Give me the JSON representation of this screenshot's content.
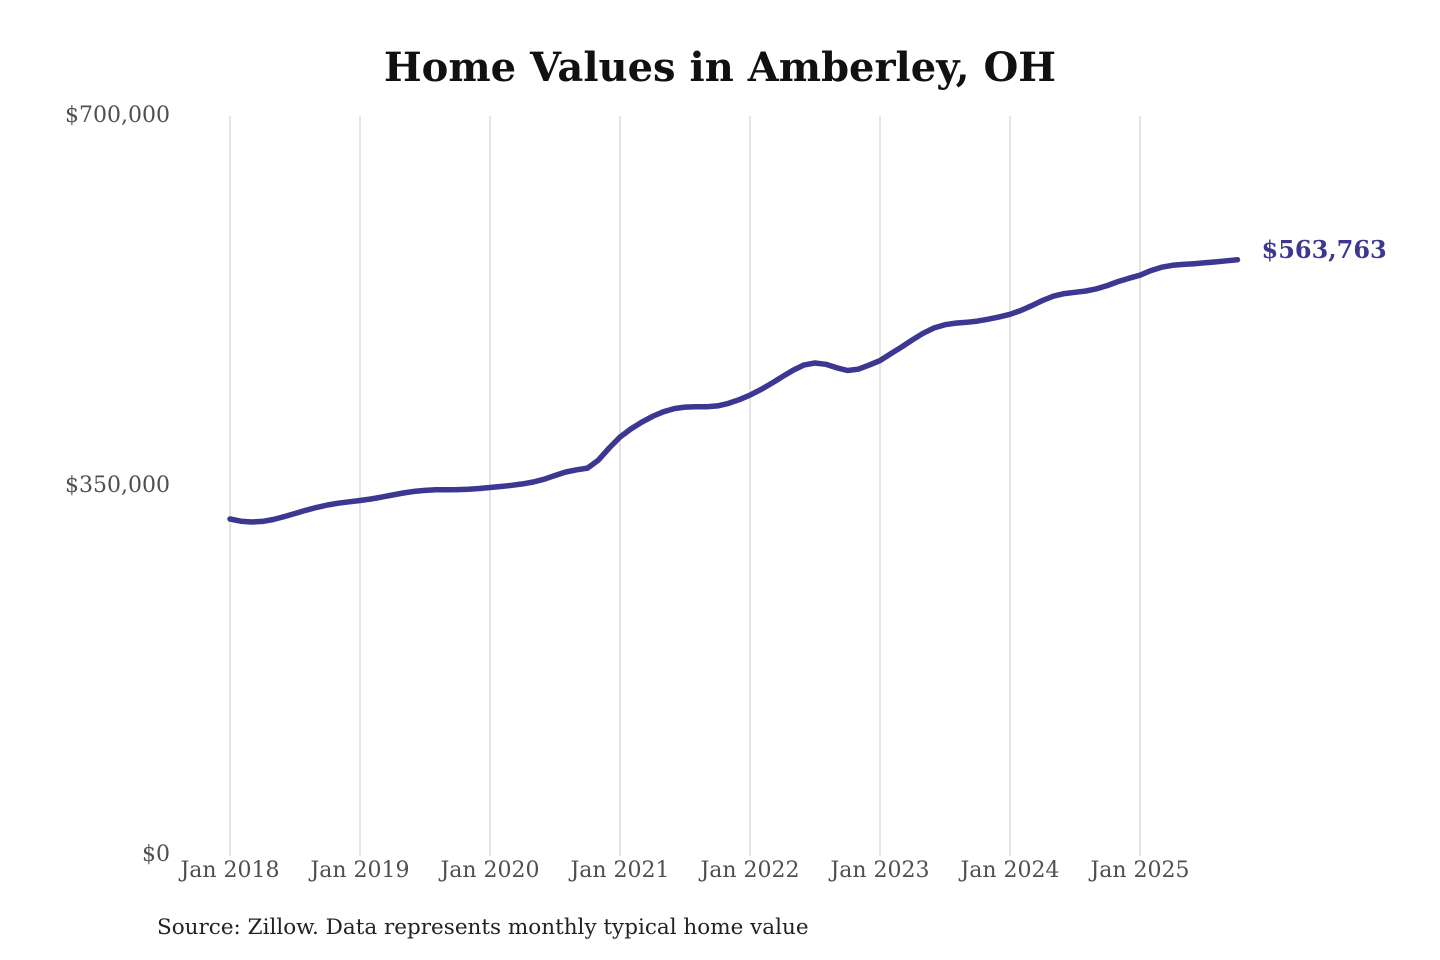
{
  "title": "Home Values in Amberley, OH",
  "end_label": "$563,763",
  "source": "Source: Zillow. Data represents monthly typical home value",
  "colors": {
    "line": "#3c3790",
    "grid": "#c9c9c9",
    "axis_text": "#4f4f4f",
    "title_text": "#111111",
    "source_text": "#222222",
    "background": "#ffffff"
  },
  "chart_data": {
    "type": "line",
    "title": "Home Values in Amberley, OH",
    "xlabel": "",
    "ylabel": "",
    "ylim": [
      0,
      700000
    ],
    "grid": "vertical-only",
    "legend": "none",
    "last_point_label": "$563,763",
    "y_ticks": [
      {
        "value": 0,
        "label": "$0"
      },
      {
        "value": 350000,
        "label": "$350,000"
      },
      {
        "value": 700000,
        "label": "$700,000"
      }
    ],
    "x_ticks": [
      {
        "index": 0,
        "label": "Jan 2018"
      },
      {
        "index": 12,
        "label": "Jan 2019"
      },
      {
        "index": 24,
        "label": "Jan 2020"
      },
      {
        "index": 36,
        "label": "Jan 2021"
      },
      {
        "index": 48,
        "label": "Jan 2022"
      },
      {
        "index": 60,
        "label": "Jan 2023"
      },
      {
        "index": 72,
        "label": "Jan 2024"
      },
      {
        "index": 84,
        "label": "Jan 2025"
      }
    ],
    "x": [
      "2018-01",
      "2018-02",
      "2018-03",
      "2018-04",
      "2018-05",
      "2018-06",
      "2018-07",
      "2018-08",
      "2018-09",
      "2018-10",
      "2018-11",
      "2018-12",
      "2019-01",
      "2019-02",
      "2019-03",
      "2019-04",
      "2019-05",
      "2019-06",
      "2019-07",
      "2019-08",
      "2019-09",
      "2019-10",
      "2019-11",
      "2019-12",
      "2020-01",
      "2020-02",
      "2020-03",
      "2020-04",
      "2020-05",
      "2020-06",
      "2020-07",
      "2020-08",
      "2020-09",
      "2020-10",
      "2020-11",
      "2020-12",
      "2021-01",
      "2021-02",
      "2021-03",
      "2021-04",
      "2021-05",
      "2021-06",
      "2021-07",
      "2021-08",
      "2021-09",
      "2021-10",
      "2021-11",
      "2021-12",
      "2022-01",
      "2022-02",
      "2022-03",
      "2022-04",
      "2022-05",
      "2022-06",
      "2022-07",
      "2022-08",
      "2022-09",
      "2022-10",
      "2022-11",
      "2022-12",
      "2023-01",
      "2023-02",
      "2023-03",
      "2023-04",
      "2023-05",
      "2023-06",
      "2023-07",
      "2023-08",
      "2023-09",
      "2023-10",
      "2023-11",
      "2023-12",
      "2024-01",
      "2024-02",
      "2024-03",
      "2024-04",
      "2024-05",
      "2024-06",
      "2024-07",
      "2024-08",
      "2024-09",
      "2024-10",
      "2024-11",
      "2024-12",
      "2025-01",
      "2025-02",
      "2025-03",
      "2025-04",
      "2025-05",
      "2025-06",
      "2025-07",
      "2025-08",
      "2025-09",
      "2025-10"
    ],
    "values": [
      318300,
      316200,
      315400,
      316000,
      317800,
      320500,
      323500,
      326500,
      329300,
      331500,
      333200,
      334600,
      335800,
      337200,
      339000,
      341000,
      342900,
      344400,
      345400,
      345900,
      346000,
      346100,
      346500,
      347200,
      348100,
      349100,
      350200,
      351500,
      353300,
      356000,
      359500,
      362800,
      364900,
      366500,
      374000,
      385500,
      395800,
      403500,
      410000,
      415500,
      419800,
      422800,
      424300,
      424600,
      424600,
      425400,
      427800,
      431300,
      435600,
      440800,
      446800,
      453200,
      459300,
      464200,
      466000,
      464800,
      461500,
      458900,
      460200,
      464000,
      468300,
      474800,
      481300,
      488000,
      494300,
      499300,
      502300,
      503800,
      504600,
      505700,
      507500,
      509700,
      512200,
      515800,
      520300,
      525200,
      529300,
      531800,
      533000,
      534200,
      536300,
      539400,
      543200,
      546400,
      549200,
      553600,
      556800,
      558600,
      559400,
      560100,
      560900,
      561800,
      562800,
      563763
    ]
  }
}
